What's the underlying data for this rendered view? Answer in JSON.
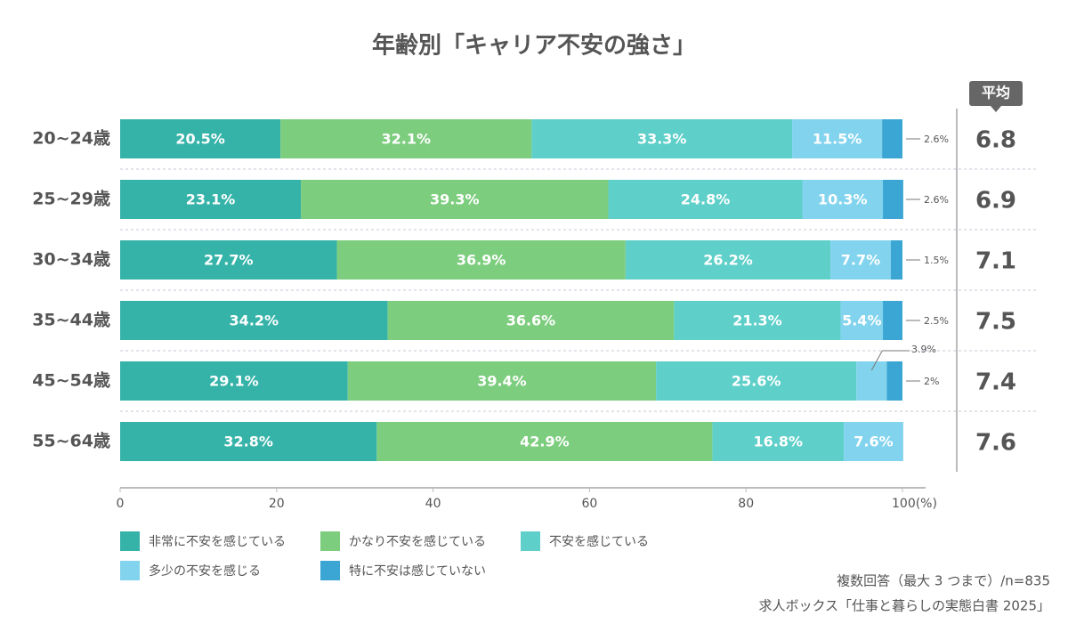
{
  "chart_data": {
    "type": "stacked_bar_horizontal",
    "title": "年齢別「キャリア不安の強さ」",
    "categories": [
      "20~24歳",
      "25~29歳",
      "30~34歳",
      "35~44歳",
      "45~54歳",
      "55~64歳"
    ],
    "series": [
      {
        "name": "非常に不安を感じている",
        "color": "#36b3a8",
        "values": [
          20.5,
          23.1,
          27.7,
          34.2,
          29.1,
          32.8
        ],
        "value_labels": [
          "20.5%",
          "23.1%",
          "27.7%",
          "34.2%",
          "29.1%",
          "32.8%"
        ]
      },
      {
        "name": "かなり不安を感じている",
        "color": "#7dcd7e",
        "values": [
          32.1,
          39.3,
          36.9,
          36.6,
          39.4,
          42.9
        ],
        "value_labels": [
          "32.1%",
          "39.3%",
          "36.9%",
          "36.6%",
          "39.4%",
          "42.9%"
        ]
      },
      {
        "name": "不安を感じている",
        "color": "#5ecfc9",
        "values": [
          33.3,
          24.8,
          26.2,
          21.3,
          25.6,
          16.8
        ],
        "value_labels": [
          "33.3%",
          "24.8%",
          "26.2%",
          "21.3%",
          "25.6%",
          "16.8%"
        ]
      },
      {
        "name": "多少の不安を感じる",
        "color": "#82d3ee",
        "values": [
          11.5,
          10.3,
          7.7,
          5.4,
          3.9,
          7.6
        ],
        "value_labels": [
          "11.5%",
          "10.3%",
          "7.7%",
          "5.4%",
          "3.9%",
          "7.6%"
        ]
      },
      {
        "name": "特に不安は感じていない",
        "color": "#3ba6d3",
        "values": [
          2.6,
          2.6,
          1.5,
          2.5,
          2,
          null
        ],
        "value_labels": [
          "2.6%",
          "2.6%",
          "1.5%",
          "2.5%",
          "2%",
          null
        ]
      }
    ],
    "xlim": [
      0,
      100
    ],
    "xticks": [
      0,
      20,
      40,
      60,
      80,
      {
        "value": 100,
        "label": "100(%)"
      }
    ],
    "averages_title": "平均",
    "averages": [
      6.8,
      6.9,
      7.1,
      7.5,
      7.4,
      7.6
    ],
    "notes": [
      "複数回答（最大 3 つまで）/n=835",
      "求人ボックス「仕事と暮らしの実態白書 2025」"
    ]
  }
}
